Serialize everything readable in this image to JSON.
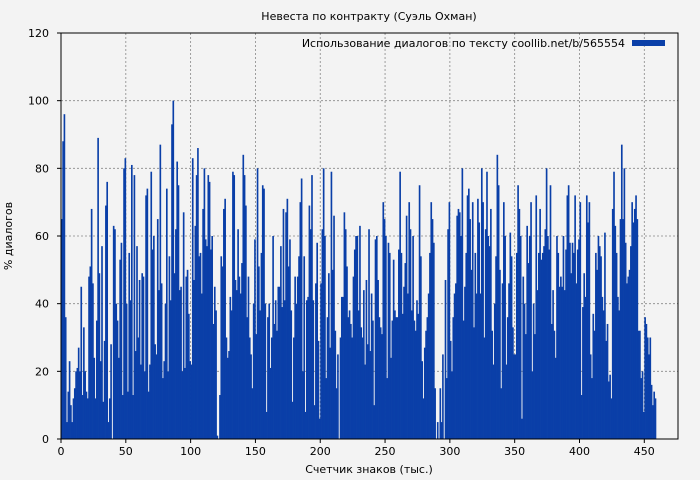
{
  "chart_data": {
    "type": "bar",
    "title": "Невеста по контракту (Суэль Охман)",
    "xlabel": "Счетчик знаков (тыс.)",
    "ylabel": "% диалогов",
    "xlim": [
      0,
      476
    ],
    "ylim": [
      0,
      120
    ],
    "x_ticks": [
      0,
      50,
      100,
      150,
      200,
      250,
      300,
      350,
      400,
      450
    ],
    "y_ticks": [
      0,
      20,
      40,
      60,
      80,
      100,
      120
    ],
    "grid": true,
    "legend_position": "top-right",
    "bar_width": 1,
    "series": [
      {
        "name": "Использование диалогов по тексту coollib.net/b/565554",
        "color": "#0a3fa8",
        "values": [
          65,
          88,
          96,
          36,
          5,
          14,
          23,
          10,
          5,
          12,
          15,
          20,
          21,
          27,
          20,
          45,
          13,
          33,
          20,
          14,
          12,
          48,
          51,
          68,
          46,
          24,
          12,
          35,
          89,
          49,
          23,
          57,
          11,
          29,
          69,
          76,
          5,
          12,
          28,
          0,
          63,
          62,
          40,
          35,
          24,
          53,
          58,
          13,
          80,
          83,
          40,
          14,
          55,
          41,
          81,
          13,
          78,
          26,
          57,
          30,
          47,
          22,
          49,
          48,
          20,
          72,
          74,
          14,
          22,
          79,
          56,
          60,
          28,
          25,
          65,
          44,
          87,
          46,
          18,
          23,
          40,
          74,
          20,
          54,
          41,
          93,
          100,
          49,
          62,
          82,
          75,
          44,
          45,
          20,
          67,
          21,
          48,
          50,
          37,
          23,
          22,
          83,
          47,
          63,
          78,
          86,
          54,
          55,
          43,
          68,
          80,
          59,
          57,
          78,
          76,
          56,
          60,
          34,
          45,
          38,
          1,
          0,
          13,
          54,
          51,
          68,
          71,
          30,
          24,
          26,
          42,
          38,
          79,
          78,
          47,
          44,
          62,
          48,
          43,
          52,
          84,
          78,
          69,
          36,
          48,
          30,
          25,
          15,
          40,
          59,
          31,
          80,
          51,
          38,
          55,
          75,
          74,
          40,
          8,
          36,
          40,
          21,
          30,
          60,
          34,
          41,
          32,
          45,
          45,
          57,
          39,
          68,
          41,
          67,
          71,
          51,
          59,
          38,
          11,
          30,
          48,
          40,
          48,
          54,
          70,
          77,
          20,
          54,
          8,
          41,
          42,
          69,
          62,
          78,
          41,
          10,
          46,
          58,
          29,
          6,
          46,
          62,
          80,
          60,
          18,
          36,
          49,
          27,
          79,
          50,
          66,
          32,
          15,
          25,
          0,
          30,
          42,
          42,
          67,
          62,
          51,
          36,
          38,
          34,
          30,
          48,
          56,
          60,
          60,
          38,
          63,
          33,
          30,
          44,
          22,
          47,
          28,
          62,
          26,
          43,
          35,
          10,
          59,
          60,
          47,
          36,
          33,
          31,
          70,
          65,
          60,
          18,
          58,
          55,
          24,
          35,
          53,
          38,
          36,
          36,
          56,
          79,
          55,
          37,
          45,
          52,
          66,
          43,
          70,
          62,
          38,
          60,
          35,
          32,
          41,
          37,
          75,
          54,
          23,
          12,
          27,
          32,
          36,
          43,
          55,
          70,
          65,
          58,
          15,
          0,
          5,
          0,
          15,
          5,
          25,
          0,
          47,
          18,
          62,
          70,
          29,
          20,
          36,
          43,
          46,
          66,
          68,
          67,
          60,
          80,
          35,
          45,
          55,
          72,
          74,
          65,
          50,
          70,
          33,
          55,
          43,
          71,
          64,
          43,
          80,
          70,
          30,
          62,
          79,
          60,
          57,
          68,
          32,
          22,
          40,
          54,
          84,
          75,
          50,
          15,
          46,
          70,
          60,
          22,
          36,
          46,
          61,
          54,
          33,
          25,
          25,
          55,
          75,
          68,
          60,
          6,
          48,
          40,
          31,
          63,
          52,
          60,
          70,
          20,
          40,
          31,
          72,
          44,
          55,
          68,
          53,
          55,
          57,
          62,
          80,
          60,
          56,
          75,
          34,
          44,
          32,
          24,
          60,
          55,
          45,
          48,
          45,
          60,
          44,
          56,
          72,
          75,
          58,
          49,
          58,
          55,
          72,
          46,
          56,
          59,
          70,
          13,
          39,
          49,
          42,
          72,
          64,
          70,
          25,
          18,
          37,
          32,
          55,
          50,
          60,
          57,
          54,
          42,
          38,
          61,
          29,
          34,
          17,
          19,
          12,
          68,
          79,
          63,
          55,
          42,
          38,
          65,
          87,
          65,
          80,
          58,
          46,
          48,
          50,
          57,
          70,
          64,
          68,
          72,
          65,
          32,
          32,
          18,
          20,
          8,
          36,
          34,
          30,
          25,
          30,
          16,
          10,
          14,
          12
        ]
      }
    ]
  }
}
